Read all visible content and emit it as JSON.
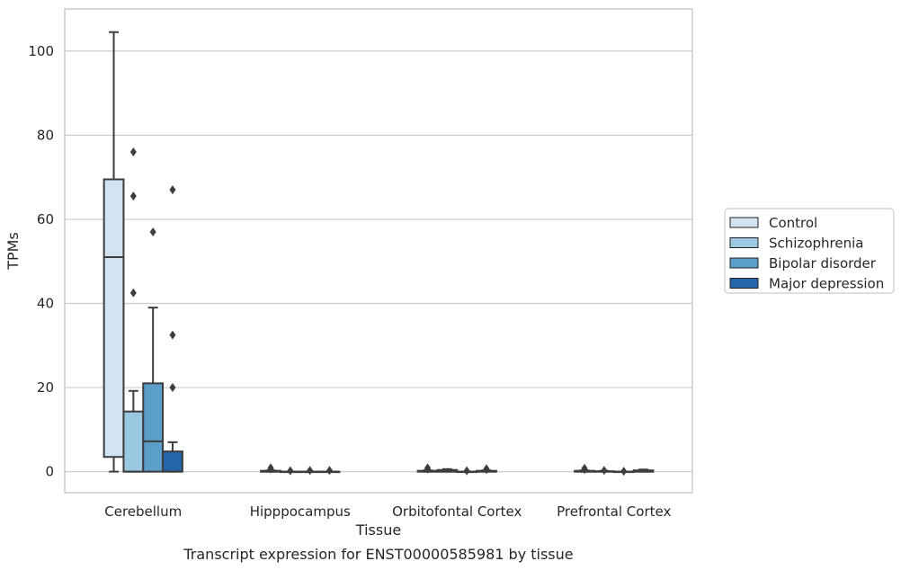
{
  "chart_data": {
    "type": "box",
    "xlabel": "Tissue",
    "ylabel": "TPMs",
    "caption": "Transcript expression for ENST00000585981 by tissue",
    "ylim": [
      -5,
      110
    ],
    "yticks": [
      0,
      20,
      40,
      60,
      80,
      100
    ],
    "grid": true,
    "legend_position": "right",
    "categories": [
      "Cerebellum",
      "Hipppocampus",
      "Orbitofontal Cortex",
      "Prefrontal Cortex"
    ],
    "series": [
      {
        "name": "Control",
        "color": "#d2e3f2",
        "boxes": [
          {
            "whisker_low": 0,
            "q1": 3.5,
            "median": 51,
            "q3": 69.5,
            "whisker_high": 104.5,
            "outliers": []
          },
          {
            "whisker_low": 0,
            "q1": 0,
            "median": 0,
            "q3": 0.2,
            "whisker_high": 0.3,
            "outliers": [
              0.6,
              0.9
            ]
          },
          {
            "whisker_low": 0,
            "q1": 0,
            "median": 0,
            "q3": 0.2,
            "whisker_high": 0.3,
            "outliers": [
              0.6,
              0.9
            ]
          },
          {
            "whisker_low": 0,
            "q1": 0,
            "median": 0,
            "q3": 0.2,
            "whisker_high": 0.3,
            "outliers": [
              0.5,
              0.8
            ]
          }
        ]
      },
      {
        "name": "Schizophrenia",
        "color": "#9ac8e0",
        "boxes": [
          {
            "whisker_low": 0,
            "q1": 0,
            "median": 0,
            "q3": 14.3,
            "whisker_high": 19.2,
            "outliers": [
              42.5,
              65.5,
              76
            ]
          },
          {
            "whisker_low": 0,
            "q1": 0,
            "median": 0,
            "q3": 0,
            "whisker_high": 0,
            "outliers": [
              0.2
            ]
          },
          {
            "whisker_low": 0,
            "q1": 0,
            "median": 0,
            "q3": 0.4,
            "whisker_high": 0.6,
            "outliers": []
          },
          {
            "whisker_low": 0,
            "q1": 0,
            "median": 0,
            "q3": 0.1,
            "whisker_high": 0.2,
            "outliers": [
              0.3
            ]
          }
        ]
      },
      {
        "name": "Bipolar disorder",
        "color": "#5a9ec9",
        "boxes": [
          {
            "whisker_low": 0,
            "q1": 0,
            "median": 7.2,
            "q3": 21,
            "whisker_high": 39,
            "outliers": [
              57
            ]
          },
          {
            "whisker_low": 0,
            "q1": 0,
            "median": 0,
            "q3": 0,
            "whisker_high": 0,
            "outliers": [
              0.3
            ]
          },
          {
            "whisker_low": 0,
            "q1": 0,
            "median": 0,
            "q3": 0,
            "whisker_high": 0,
            "outliers": [
              0.2
            ]
          },
          {
            "whisker_low": 0,
            "q1": 0,
            "median": 0,
            "q3": 0,
            "whisker_high": 0,
            "outliers": [
              0.1
            ]
          }
        ]
      },
      {
        "name": "Major depression",
        "color": "#2364aa",
        "boxes": [
          {
            "whisker_low": 0,
            "q1": 0,
            "median": 0,
            "q3": 4.8,
            "whisker_high": 7,
            "outliers": [
              20,
              32.5,
              67
            ]
          },
          {
            "whisker_low": 0,
            "q1": 0,
            "median": 0,
            "q3": 0,
            "whisker_high": 0,
            "outliers": [
              0.3
            ]
          },
          {
            "whisker_low": 0,
            "q1": 0,
            "median": 0,
            "q3": 0.2,
            "whisker_high": 0.3,
            "outliers": [
              0.5,
              0.7
            ]
          },
          {
            "whisker_low": 0,
            "q1": 0,
            "median": 0,
            "q3": 0.3,
            "whisker_high": 0.5,
            "outliers": []
          }
        ]
      }
    ]
  }
}
